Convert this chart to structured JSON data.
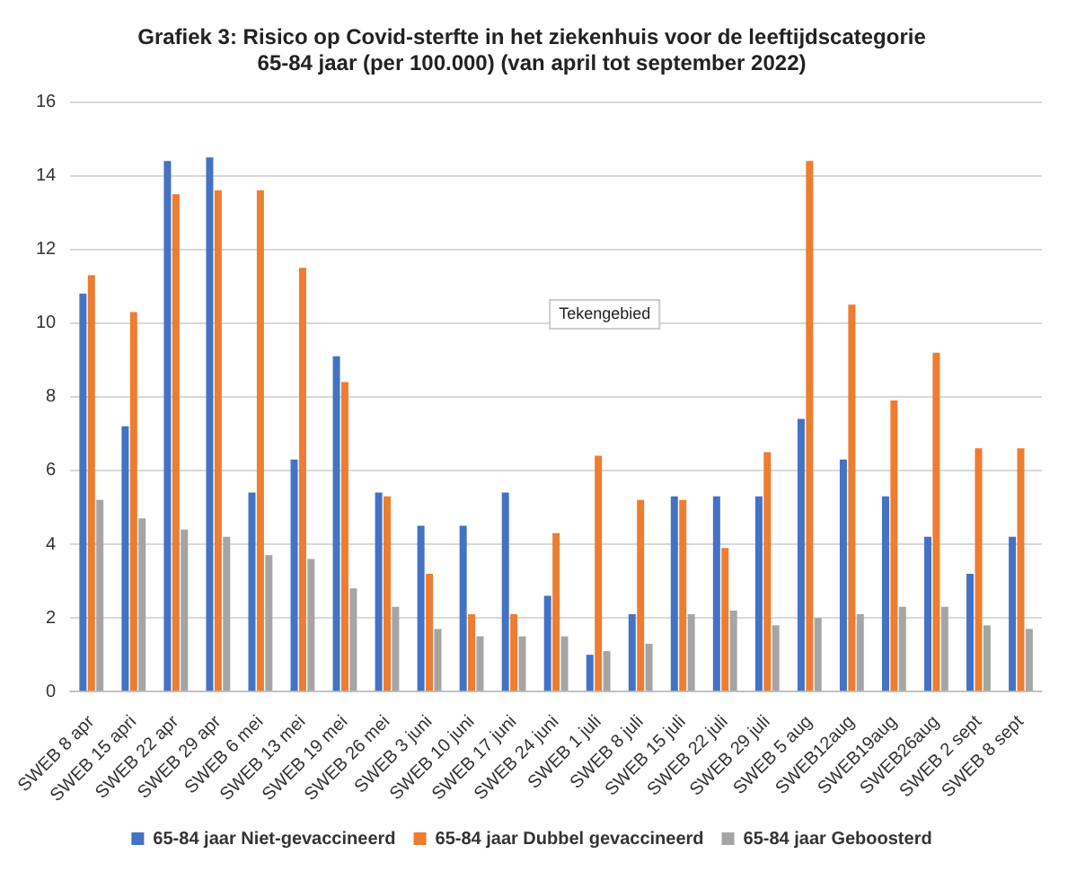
{
  "chart_data": {
    "type": "bar",
    "title": [
      "Grafiek 3: Risico op Covid-sterfte in het ziekenhuis voor de leeftijdscategorie",
      "65-84 jaar (per 100.000) (van april tot september 2022)"
    ],
    "categories": [
      "SWEB 8 apr",
      "SWEB 15 apri",
      "SWEB 22 apr",
      "SWEB 29 apr",
      "SWEB 6 mei",
      "SWEB 13 mei",
      "SWEB 19 mei",
      "SWEB 26 mei",
      "SWEB 3 juni",
      "SWEB 10 juni",
      "SWEB 17 juni",
      "SWEB 24 juni",
      "SWEB 1 juli",
      "SWEB 8 juli",
      "SWEB 15 juli",
      "SWEB 22 juli",
      "SWEB 29 juli",
      "SWEB 5 aug",
      "SWEB12aug",
      "SWEB19aug",
      "SWEB26aug",
      "SWEB 2 sept",
      "SWEB 8 sept"
    ],
    "series": [
      {
        "name": "65-84 jaar Niet-gevaccineerd",
        "color": "#4472c4",
        "values": [
          10.8,
          7.2,
          14.4,
          14.5,
          5.4,
          6.3,
          9.1,
          5.4,
          4.5,
          4.5,
          5.4,
          2.6,
          1.0,
          2.1,
          5.3,
          5.3,
          5.3,
          7.4,
          6.3,
          5.3,
          4.2,
          3.2,
          4.2
        ]
      },
      {
        "name": "65-84 jaar Dubbel gevaccineerd",
        "color": "#ed7d31",
        "values": [
          11.3,
          10.3,
          13.5,
          13.6,
          13.6,
          11.5,
          8.4,
          5.3,
          3.2,
          2.1,
          2.1,
          4.3,
          6.4,
          5.2,
          5.2,
          3.9,
          6.5,
          14.4,
          10.5,
          7.9,
          9.2,
          6.6,
          6.6
        ]
      },
      {
        "name": "65-84 jaar Geboosterd",
        "color": "#a5a5a5",
        "values": [
          5.2,
          4.7,
          4.4,
          4.2,
          3.7,
          3.6,
          2.8,
          2.3,
          1.7,
          1.5,
          1.5,
          1.5,
          1.1,
          1.3,
          2.1,
          2.2,
          1.8,
          2.0,
          2.1,
          2.3,
          2.3,
          1.8,
          1.7
        ]
      }
    ],
    "ylim": [
      0,
      16
    ],
    "yticks": [
      0,
      2,
      4,
      6,
      8,
      10,
      12,
      14,
      16
    ],
    "grid": "y",
    "legend": "bottom",
    "annotations": [
      "Tekengebied"
    ]
  }
}
